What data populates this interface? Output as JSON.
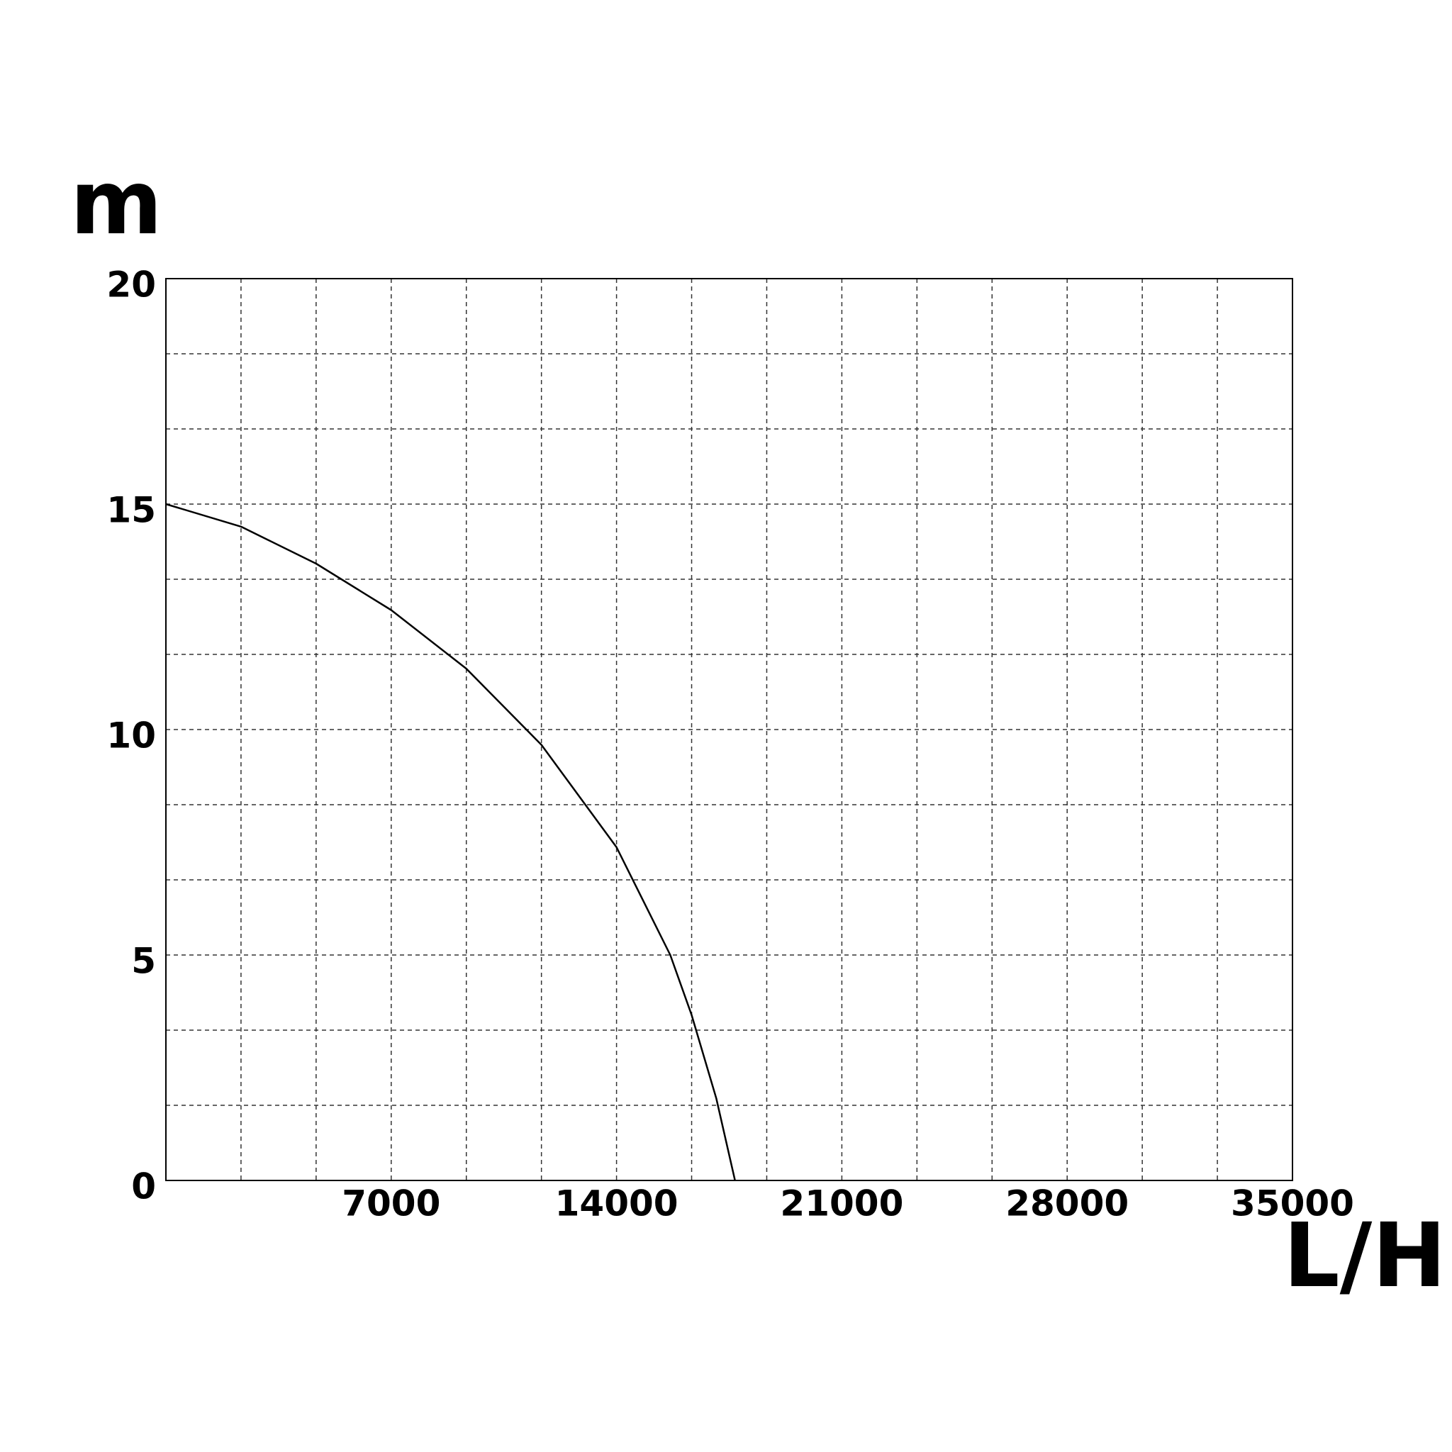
{
  "chart_data": {
    "type": "line",
    "y_label": "m",
    "x_label": "L/H",
    "x": [
      0,
      2333,
      4667,
      7000,
      9333,
      11667,
      14000,
      15670,
      16333,
      17100,
      17680
    ],
    "series": [
      {
        "color": "#000000",
        "values": [
          15,
          14.5,
          13.68,
          12.65,
          11.35,
          9.66,
          7.39,
          5.0,
          3.67,
          1.82,
          0
        ]
      }
    ],
    "xlim": [
      0,
      35000
    ],
    "xticks": [
      7000,
      14000,
      21000,
      28000,
      35000
    ],
    "ylim": [
      0,
      20
    ],
    "yticks": [
      0,
      5,
      10,
      15,
      20
    ],
    "grid": true,
    "grid_minor_divisions": 3
  }
}
